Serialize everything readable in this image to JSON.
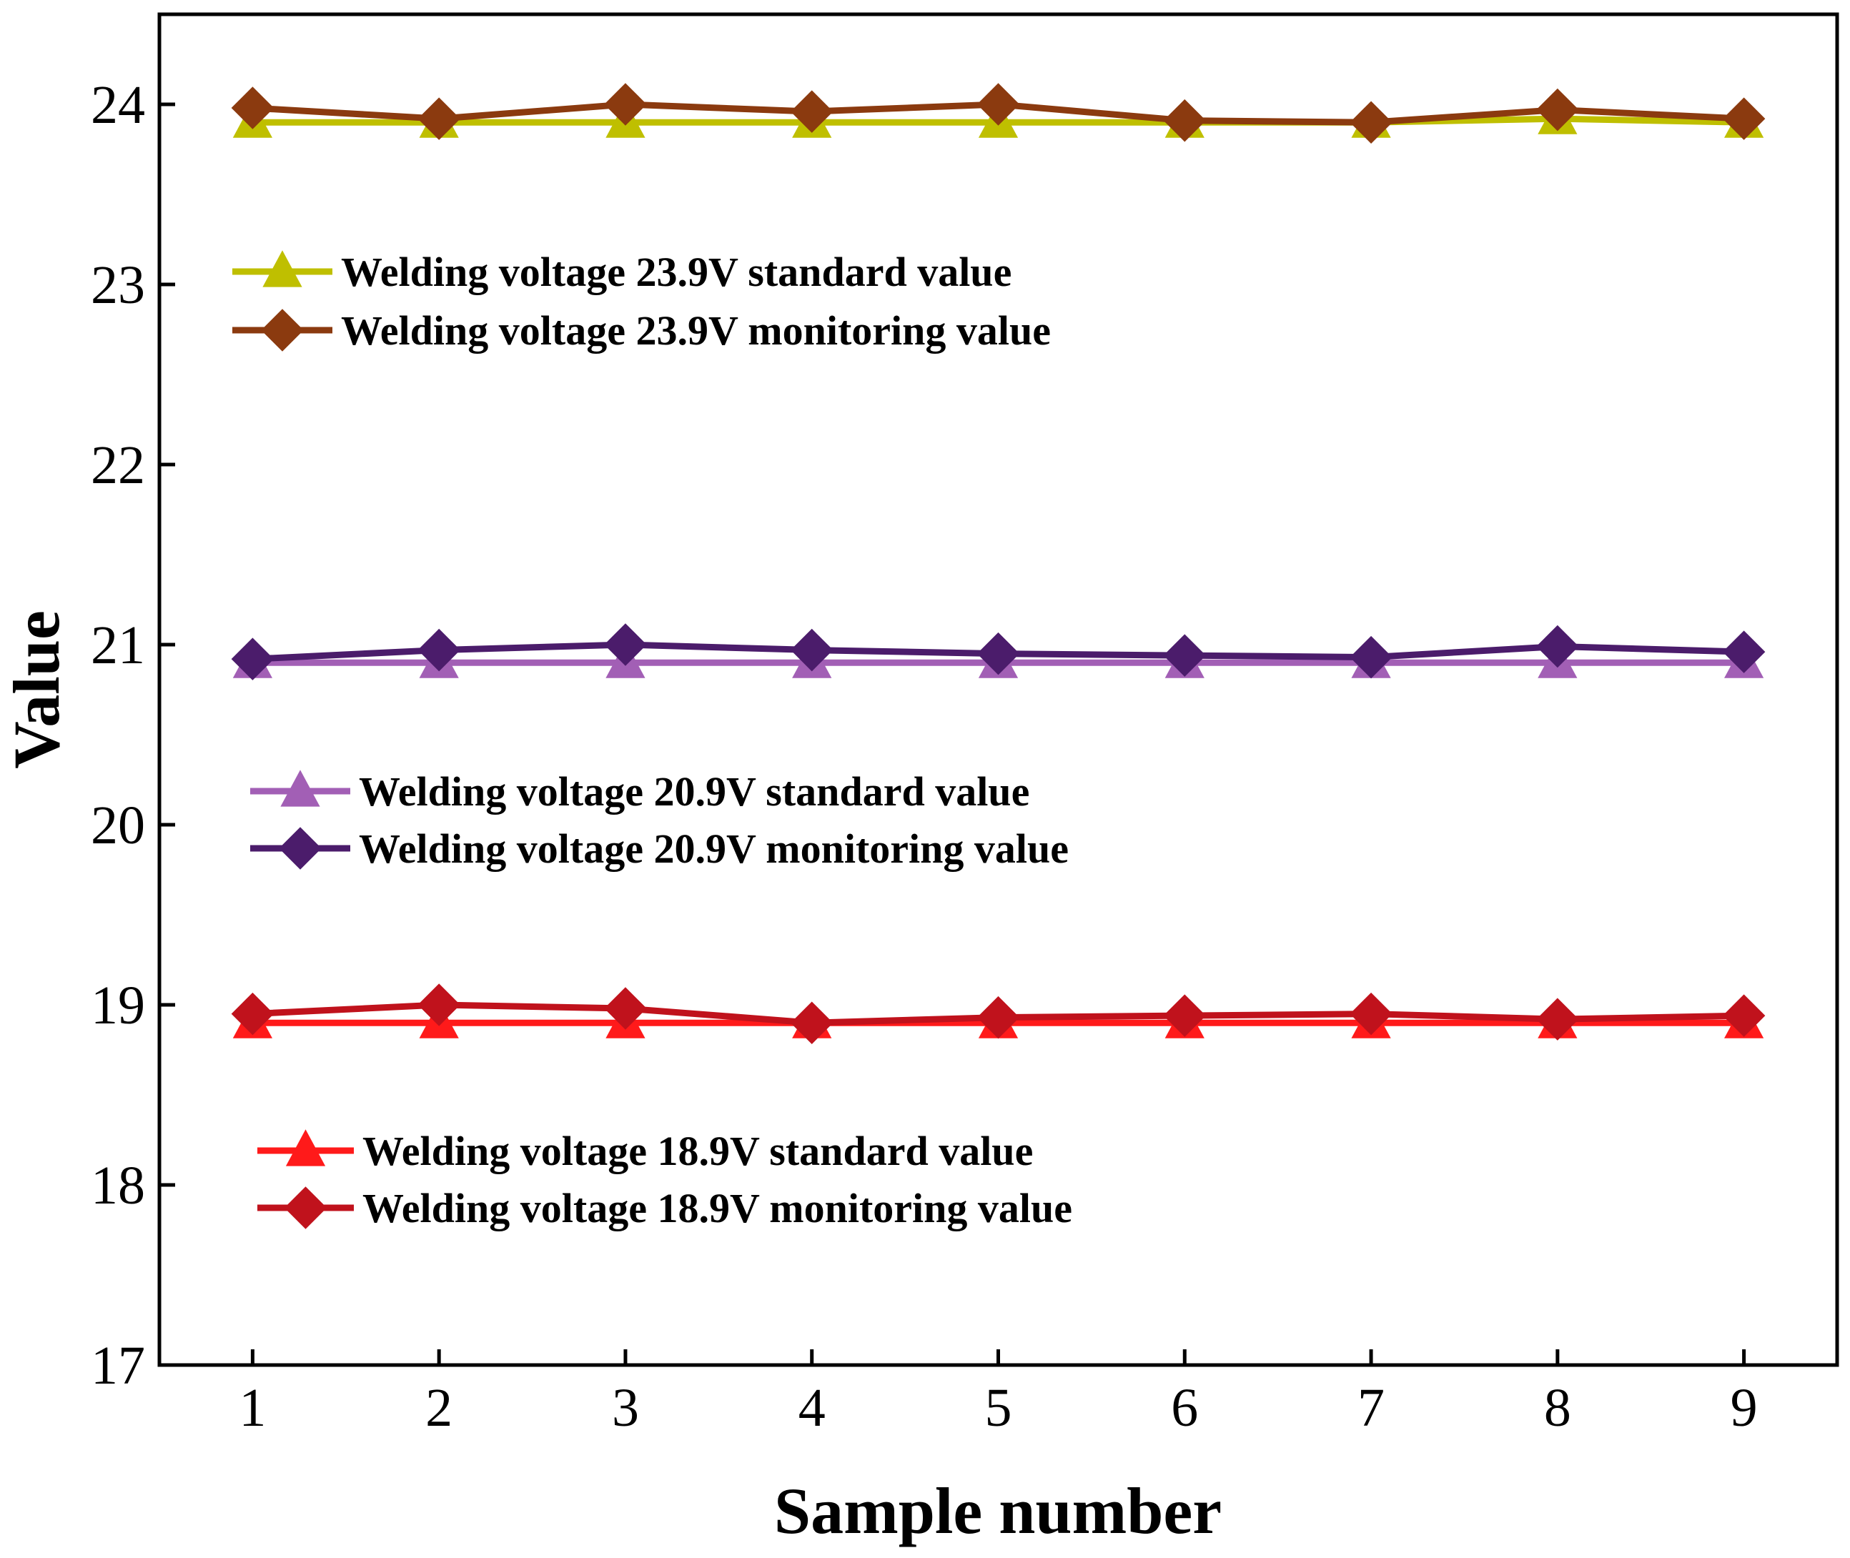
{
  "chart_data": {
    "type": "line",
    "title": "",
    "xlabel": "Sample number",
    "ylabel": "Value",
    "x": [
      1,
      2,
      3,
      4,
      5,
      6,
      7,
      8,
      9
    ],
    "xlim": [
      0.5,
      9.5
    ],
    "ylim": [
      17,
      24.5
    ],
    "x_ticks": [
      1,
      2,
      3,
      4,
      5,
      6,
      7,
      8,
      9
    ],
    "y_ticks": [
      17,
      18,
      19,
      20,
      21,
      22,
      23,
      24
    ],
    "grid": false,
    "series": [
      {
        "name": "Welding voltage 23.9V standard value",
        "color": "#bfbf00",
        "marker": "triangle",
        "values": [
          23.9,
          23.9,
          23.9,
          23.9,
          23.9,
          23.9,
          23.9,
          23.92,
          23.9
        ]
      },
      {
        "name": "Welding voltage 23.9V monitoring value",
        "color": "#8b3a0f",
        "marker": "diamond",
        "values": [
          23.98,
          23.92,
          24.0,
          23.96,
          24.0,
          23.91,
          23.9,
          23.97,
          23.92
        ]
      },
      {
        "name": "Welding voltage 20.9V standard value",
        "color": "#a25fb5",
        "marker": "triangle",
        "values": [
          20.9,
          20.9,
          20.9,
          20.9,
          20.9,
          20.9,
          20.9,
          20.9,
          20.9
        ]
      },
      {
        "name": "Welding voltage 20.9V monitoring value",
        "color": "#4b1c6b",
        "marker": "diamond",
        "values": [
          20.92,
          20.97,
          21.0,
          20.97,
          20.95,
          20.94,
          20.93,
          20.99,
          20.96
        ]
      },
      {
        "name": "Welding voltage 18.9V standard value",
        "color": "#ff1a1a",
        "marker": "triangle",
        "values": [
          18.9,
          18.9,
          18.9,
          18.9,
          18.9,
          18.9,
          18.9,
          18.9,
          18.9
        ]
      },
      {
        "name": "Welding voltage 18.9V monitoring value",
        "color": "#c0121c",
        "marker": "diamond",
        "values": [
          18.95,
          19.0,
          18.98,
          18.9,
          18.93,
          18.94,
          18.95,
          18.92,
          18.94
        ]
      }
    ],
    "legends": [
      {
        "placement": "upper-left",
        "entries": [
          0,
          1
        ]
      },
      {
        "placement": "middle-left",
        "entries": [
          2,
          3
        ]
      },
      {
        "placement": "lower-left",
        "entries": [
          4,
          5
        ]
      }
    ]
  }
}
